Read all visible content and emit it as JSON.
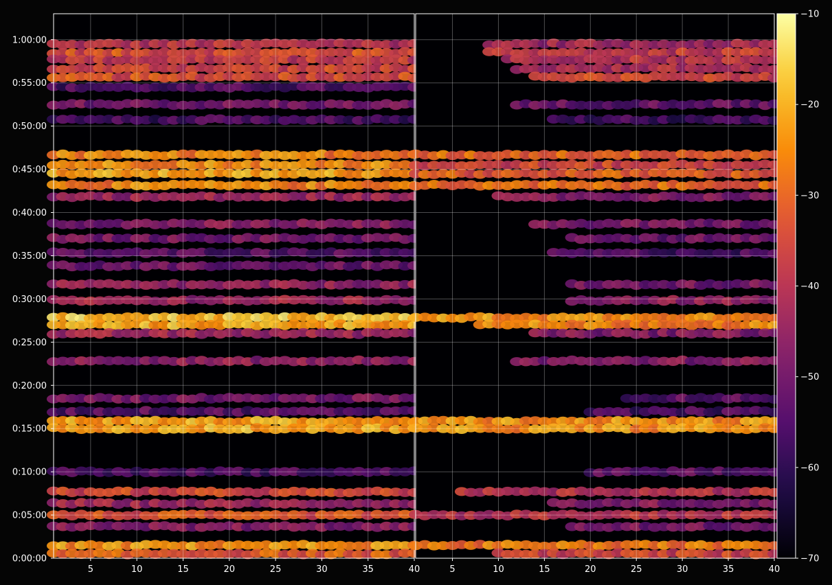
{
  "chart_data": {
    "type": "heatmap",
    "title": "",
    "xlabel": "",
    "ylabel": "",
    "panels": [
      {
        "name": "",
        "xlim": [
          1,
          40
        ],
        "xticks": [
          5,
          10,
          15,
          20,
          25,
          30,
          35,
          40
        ],
        "bands": [
          {
            "t": "0:59:30",
            "level": -40,
            "span": [
              1,
              40
            ]
          },
          {
            "t": "0:58:30",
            "level": -34,
            "span": [
              1,
              40
            ]
          },
          {
            "t": "0:57:40",
            "level": -38,
            "span": [
              1,
              40
            ]
          },
          {
            "t": "0:56:40",
            "level": -36,
            "span": [
              1,
              40
            ]
          },
          {
            "t": "0:55:40",
            "level": -34,
            "span": [
              1,
              40
            ]
          },
          {
            "t": "0:54:30",
            "level": -56,
            "span": [
              1,
              40
            ]
          },
          {
            "t": "0:52:30",
            "level": -50,
            "span": [
              1,
              40
            ]
          },
          {
            "t": "0:50:45",
            "level": -57,
            "span": [
              1,
              40
            ]
          },
          {
            "t": "0:46:40",
            "level": -26,
            "span": [
              1,
              40
            ]
          },
          {
            "t": "0:45:30",
            "level": -24,
            "span": [
              1,
              40
            ]
          },
          {
            "t": "0:44:30",
            "level": -22,
            "span": [
              1,
              40
            ]
          },
          {
            "t": "0:43:10",
            "level": -26,
            "span": [
              1,
              40
            ]
          },
          {
            "t": "0:41:50",
            "level": -44,
            "span": [
              1,
              40
            ]
          },
          {
            "t": "0:38:40",
            "level": -48,
            "span": [
              1,
              40
            ]
          },
          {
            "t": "0:37:00",
            "level": -50,
            "span": [
              1,
              40
            ]
          },
          {
            "t": "0:35:20",
            "level": -54,
            "span": [
              1,
              40
            ]
          },
          {
            "t": "0:33:50",
            "level": -52,
            "span": [
              1,
              40
            ]
          },
          {
            "t": "0:31:40",
            "level": -46,
            "span": [
              1,
              40
            ]
          },
          {
            "t": "0:29:50",
            "level": -44,
            "span": [
              1,
              40
            ]
          },
          {
            "t": "0:27:50",
            "level": -18,
            "span": [
              1,
              40
            ]
          },
          {
            "t": "0:27:00",
            "level": -21,
            "span": [
              1,
              40
            ]
          },
          {
            "t": "0:26:00",
            "level": -44,
            "span": [
              1,
              40
            ]
          },
          {
            "t": "0:22:50",
            "level": -46,
            "span": [
              1,
              40
            ]
          },
          {
            "t": "0:18:30",
            "level": -50,
            "span": [
              1,
              40
            ]
          },
          {
            "t": "0:17:00",
            "level": -54,
            "span": [
              1,
              40
            ]
          },
          {
            "t": "0:15:50",
            "level": -22,
            "span": [
              1,
              40
            ]
          },
          {
            "t": "0:15:00",
            "level": -21,
            "span": [
              1,
              40
            ]
          },
          {
            "t": "0:10:00",
            "level": -56,
            "span": [
              1,
              40
            ]
          },
          {
            "t": "0:07:40",
            "level": -36,
            "span": [
              1,
              40
            ]
          },
          {
            "t": "0:06:20",
            "level": -44,
            "span": [
              1,
              40
            ]
          },
          {
            "t": "0:05:00",
            "level": -34,
            "span": [
              1,
              40
            ]
          },
          {
            "t": "0:03:40",
            "level": -48,
            "span": [
              1,
              40
            ]
          },
          {
            "t": "0:01:30",
            "level": -24,
            "span": [
              1,
              40
            ]
          },
          {
            "t": "0:00:30",
            "level": -32,
            "span": [
              1,
              40
            ]
          }
        ]
      },
      {
        "name": "",
        "xlim": [
          1,
          40
        ],
        "xticks": [
          5,
          10,
          15,
          20,
          25,
          30,
          35,
          40
        ],
        "bands": [
          {
            "t": "0:59:30",
            "level": -44,
            "span": [
              9,
              40
            ]
          },
          {
            "t": "0:58:30",
            "level": -38,
            "span": [
              9,
              40
            ]
          },
          {
            "t": "0:57:40",
            "level": -40,
            "span": [
              11,
              40
            ]
          },
          {
            "t": "0:56:40",
            "level": -42,
            "span": [
              12,
              40
            ]
          },
          {
            "t": "0:55:40",
            "level": -36,
            "span": [
              14,
              40
            ]
          },
          {
            "t": "0:52:30",
            "level": -52,
            "span": [
              12,
              40
            ]
          },
          {
            "t": "0:50:45",
            "level": -58,
            "span": [
              16,
              40
            ]
          },
          {
            "t": "0:46:40",
            "level": -30,
            "span": [
              1,
              40
            ]
          },
          {
            "t": "0:45:30",
            "level": -36,
            "span": [
              1,
              40
            ]
          },
          {
            "t": "0:44:30",
            "level": -32,
            "span": [
              1,
              40
            ]
          },
          {
            "t": "0:43:10",
            "level": -30,
            "span": [
              1,
              40
            ]
          },
          {
            "t": "0:41:50",
            "level": -48,
            "span": [
              10,
              40
            ]
          },
          {
            "t": "0:38:40",
            "level": -50,
            "span": [
              14,
              40
            ]
          },
          {
            "t": "0:37:00",
            "level": -52,
            "span": [
              18,
              40
            ]
          },
          {
            "t": "0:35:20",
            "level": -56,
            "span": [
              16,
              40
            ]
          },
          {
            "t": "0:31:40",
            "level": -50,
            "span": [
              18,
              40
            ]
          },
          {
            "t": "0:29:50",
            "level": -46,
            "span": [
              18,
              40
            ]
          },
          {
            "t": "0:27:50",
            "level": -24,
            "span": [
              1,
              40
            ]
          },
          {
            "t": "0:27:00",
            "level": -26,
            "span": [
              8,
              40
            ]
          },
          {
            "t": "0:26:00",
            "level": -48,
            "span": [
              14,
              40
            ]
          },
          {
            "t": "0:22:50",
            "level": -48,
            "span": [
              12,
              40
            ]
          },
          {
            "t": "0:18:30",
            "level": -54,
            "span": [
              24,
              40
            ]
          },
          {
            "t": "0:17:00",
            "level": -56,
            "span": [
              20,
              40
            ]
          },
          {
            "t": "0:15:50",
            "level": -24,
            "span": [
              1,
              40
            ]
          },
          {
            "t": "0:15:00",
            "level": -24,
            "span": [
              1,
              40
            ]
          },
          {
            "t": "0:10:00",
            "level": -54,
            "span": [
              20,
              40
            ]
          },
          {
            "t": "0:07:40",
            "level": -40,
            "span": [
              6,
              40
            ]
          },
          {
            "t": "0:06:20",
            "level": -48,
            "span": [
              16,
              40
            ]
          },
          {
            "t": "0:05:00",
            "level": -40,
            "span": [
              1,
              40
            ]
          },
          {
            "t": "0:03:40",
            "level": -50,
            "span": [
              18,
              40
            ]
          },
          {
            "t": "0:01:30",
            "level": -28,
            "span": [
              1,
              40
            ]
          },
          {
            "t": "0:00:30",
            "level": -36,
            "span": [
              10,
              40
            ]
          }
        ]
      }
    ],
    "y_axis": {
      "range": [
        "0:00:00",
        "1:03:00"
      ],
      "ticks": [
        "0:00:00",
        "0:05:00",
        "0:10:00",
        "0:15:00",
        "0:20:00",
        "0:25:00",
        "0:30:00",
        "0:35:00",
        "0:40:00",
        "0:45:00",
        "0:50:00",
        "0:55:00",
        "1:00:00"
      ]
    },
    "colorbar": {
      "colormap": "inferno",
      "range": [
        -70,
        -10
      ],
      "ticks": [
        "−10",
        "−20",
        "−30",
        "−40",
        "−50",
        "−60",
        "−70"
      ]
    },
    "grid": true
  }
}
